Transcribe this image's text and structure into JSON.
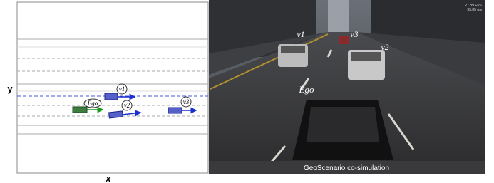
{
  "left_panel": {
    "x_label": "x",
    "y_label": "y",
    "vehicles": [
      {
        "label": "v1"
      },
      {
        "label": "Ego"
      },
      {
        "label": "v2"
      },
      {
        "label": "v3"
      }
    ]
  },
  "right_panel": {
    "labels": [
      "v1",
      "v3",
      "v2",
      "Ego"
    ],
    "fps": "27.89 FPS",
    "frame_time": "35.85 ms",
    "caption": "GeoScenario co-simulation"
  }
}
